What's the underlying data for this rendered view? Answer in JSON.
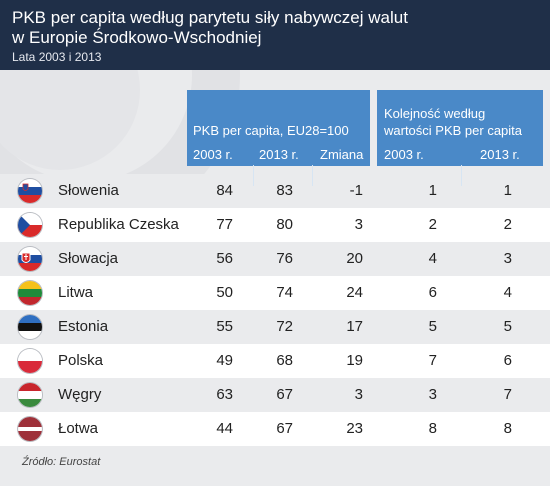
{
  "title_line1": "PKB per capita według parytetu siły nabywczej walut",
  "title_line2": "w Europie Środkowo-Wschodniej",
  "subtitle": "Lata 2003 i 2013",
  "group1_caption": "PKB per capita, EU28=100",
  "group2_caption_line1": "Kolejność według",
  "group2_caption_line2": "wartości PKB per capita",
  "columns": {
    "gdp_2003": "2003 r.",
    "gdp_2013": "2013 r.",
    "change": "Zmiana",
    "rank_2003": "2003 r.",
    "rank_2013": "2013 r."
  },
  "colors": {
    "header_bg": "#1f2f48",
    "accent_blue": "#4a89c8",
    "band_gray": "#eaebed"
  },
  "source": "Źródło: Eurostat",
  "chart_data": {
    "type": "table",
    "title": "PKB per capita według parytetu siły nabywczej walut w Europie Środkowo-Wschodniej",
    "subtitle": "Lata 2003 i 2013",
    "columns": [
      "2003 r.",
      "2013 r.",
      "Zmiana",
      "2003 r.",
      "2013 r."
    ],
    "rows": [
      {
        "country": "Słowenia",
        "flag": "slovenia-flag",
        "gdp_2003": "84",
        "gdp_2013": "83",
        "change": "-1",
        "rank_2003": "1",
        "rank_2013": "1"
      },
      {
        "country": "Republika Czeska",
        "flag": "czech-flag",
        "gdp_2003": "77",
        "gdp_2013": "80",
        "change": "3",
        "rank_2003": "2",
        "rank_2013": "2"
      },
      {
        "country": "Słowacja",
        "flag": "slovakia-flag",
        "gdp_2003": "56",
        "gdp_2013": "76",
        "change": "20",
        "rank_2003": "4",
        "rank_2013": "3"
      },
      {
        "country": "Litwa",
        "flag": "lithuania-flag",
        "gdp_2003": "50",
        "gdp_2013": "74",
        "change": "24",
        "rank_2003": "6",
        "rank_2013": "4"
      },
      {
        "country": "Estonia",
        "flag": "estonia-flag",
        "gdp_2003": "55",
        "gdp_2013": "72",
        "change": "17",
        "rank_2003": "5",
        "rank_2013": "5"
      },
      {
        "country": "Polska",
        "flag": "poland-flag",
        "gdp_2003": "49",
        "gdp_2013": "68",
        "change": "19",
        "rank_2003": "7",
        "rank_2013": "6"
      },
      {
        "country": "Węgry",
        "flag": "hungary-flag",
        "gdp_2003": "63",
        "gdp_2013": "67",
        "change": "3",
        "rank_2003": "3",
        "rank_2013": "7"
      },
      {
        "country": "Łotwa",
        "flag": "latvia-flag",
        "gdp_2003": "44",
        "gdp_2013": "67",
        "change": "23",
        "rank_2003": "8",
        "rank_2013": "8"
      }
    ]
  }
}
